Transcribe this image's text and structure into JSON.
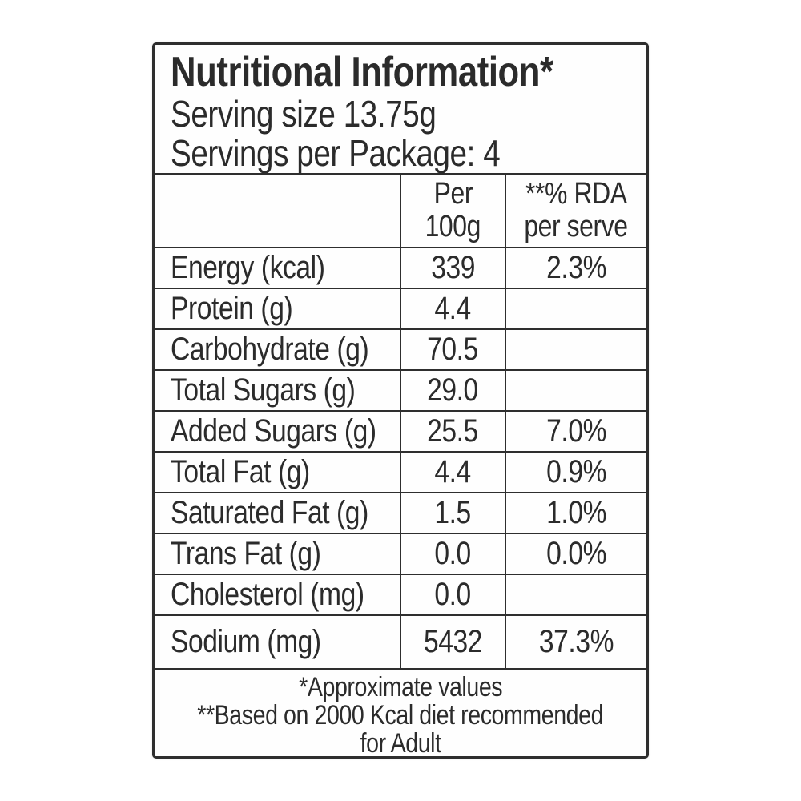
{
  "title_block": {
    "title": "Nutritional Information*",
    "serving_size": "Serving size 13.75g",
    "servings_per_package": "Servings per Package: 4"
  },
  "table": {
    "header": {
      "nutrient_col": "",
      "per_100g_line1": "Per",
      "per_100g_line2": "100g",
      "rda_line1": "**% RDA",
      "rda_line2": "per serve"
    },
    "rows": [
      {
        "label": "Energy (kcal)",
        "per_100g": "339",
        "rda_per_serve": "2.3%"
      },
      {
        "label": "Protein (g)",
        "per_100g": "4.4",
        "rda_per_serve": ""
      },
      {
        "label": "Carbohydrate (g)",
        "per_100g": "70.5",
        "rda_per_serve": ""
      },
      {
        "label": "Total Sugars (g)",
        "per_100g": "29.0",
        "rda_per_serve": ""
      },
      {
        "label": "Added Sugars (g)",
        "per_100g": "25.5",
        "rda_per_serve": "7.0%"
      },
      {
        "label": "Total Fat (g)",
        "per_100g": "4.4",
        "rda_per_serve": "0.9%"
      },
      {
        "label": "Saturated Fat (g)",
        "per_100g": "1.5",
        "rda_per_serve": "1.0%"
      },
      {
        "label": "Trans Fat (g)",
        "per_100g": "0.0",
        "rda_per_serve": "0.0%"
      },
      {
        "label": "Cholesterol (mg)",
        "per_100g": "0.0",
        "rda_per_serve": ""
      },
      {
        "label": "Sodium (mg)",
        "per_100g": "5432",
        "rda_per_serve": "37.3%"
      }
    ]
  },
  "footnotes": {
    "line1": "*Approximate values",
    "line2": "**Based on 2000 Kcal diet recommended",
    "line3": "for Adult"
  },
  "colors": {
    "text": "#2b2b2b",
    "border": "#2e2e2e",
    "background": "#ffffff"
  }
}
